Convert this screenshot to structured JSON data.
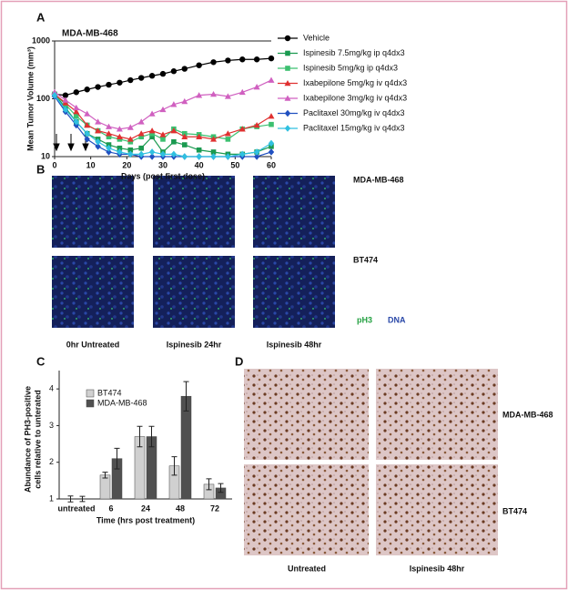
{
  "panel_labels": [
    "A",
    "B",
    "C",
    "D"
  ],
  "chart_data": [
    {
      "type": "line",
      "title": "MDA-MB-468",
      "xlabel": "Days (post first dose)",
      "ylabel": "Mean Tumor Volume (mm³)",
      "log_y": true,
      "xlim": [
        0,
        60
      ],
      "xticks": [
        0,
        10,
        20,
        30,
        40,
        50,
        60
      ],
      "ylim": [
        10,
        1000
      ],
      "yticks": [
        10,
        100,
        1000
      ],
      "x": [
        0,
        3,
        6,
        9,
        12,
        15,
        18,
        21,
        24,
        27,
        30,
        33,
        36,
        40,
        44,
        48,
        52,
        56,
        60
      ],
      "series": [
        {
          "name": "Vehicle",
          "color": "#000000",
          "marker": "circle",
          "values": [
            120,
            115,
            130,
            145,
            160,
            175,
            190,
            210,
            230,
            250,
            270,
            300,
            330,
            380,
            430,
            460,
            480,
            480,
            500
          ]
        },
        {
          "name": "Ispinesib 7.5mg/kg ip q4dx3",
          "color": "#1a9a50",
          "marker": "square",
          "values": [
            120,
            70,
            40,
            25,
            20,
            16,
            14,
            13,
            14,
            22,
            12,
            18,
            16,
            13,
            12,
            11,
            11,
            12,
            15
          ]
        },
        {
          "name": "Ispinesib 5mg/kg ip q4dx3",
          "color": "#3cc070",
          "marker": "square",
          "values": [
            120,
            80,
            50,
            35,
            28,
            22,
            20,
            18,
            22,
            25,
            20,
            30,
            25,
            24,
            22,
            20,
            30,
            33,
            36
          ]
        },
        {
          "name": "Ixabepilone 5mg/kg iv q4dx3",
          "color": "#e03030",
          "marker": "triangle",
          "values": [
            120,
            85,
            60,
            35,
            28,
            25,
            22,
            20,
            25,
            28,
            24,
            28,
            22,
            22,
            20,
            25,
            30,
            35,
            50
          ]
        },
        {
          "name": "Ixabepilone 3mg/kg iv q4dx3",
          "color": "#d060c0",
          "marker": "triangle",
          "values": [
            130,
            95,
            70,
            55,
            40,
            33,
            30,
            32,
            40,
            55,
            65,
            80,
            90,
            115,
            120,
            110,
            130,
            160,
            210
          ]
        },
        {
          "name": "Paclitaxel 30mg/kg iv q4dx3",
          "color": "#2050c0",
          "marker": "diamond",
          "values": [
            110,
            60,
            35,
            20,
            15,
            12,
            11,
            11,
            10,
            10,
            10,
            10,
            10,
            10,
            10,
            10,
            10,
            10,
            12
          ]
        },
        {
          "name": "Paclitaxel 15mg/kg iv q4dx3",
          "color": "#30c0e0",
          "marker": "diamond",
          "values": [
            115,
            65,
            40,
            25,
            18,
            14,
            12,
            11,
            11,
            12,
            11,
            11,
            10,
            10,
            10,
            10,
            11,
            12,
            17
          ]
        }
      ]
    },
    {
      "type": "bar",
      "xlabel": "Time (hrs post treatment)",
      "ylabel_lines": [
        "Abundance of PH3-positive",
        "cells relative to unterated"
      ],
      "ylim": [
        1,
        4.5
      ],
      "yticks": [
        1,
        2,
        3,
        4
      ],
      "categories": [
        "untreated",
        "6",
        "24",
        "48",
        "72"
      ],
      "series": [
        {
          "name": "BT474",
          "color": "#d0d0d0",
          "values": [
            1,
            1.65,
            2.7,
            1.9,
            1.4
          ],
          "errors": [
            0.08,
            0.08,
            0.28,
            0.25,
            0.15
          ]
        },
        {
          "name": "MDA-MB-468",
          "color": "#505050",
          "values": [
            1,
            2.1,
            2.7,
            3.8,
            1.3
          ],
          "errors": [
            0.07,
            0.28,
            0.28,
            0.4,
            0.12
          ]
        }
      ]
    }
  ],
  "panel_b": {
    "rows": [
      "MDA-MB-468",
      "BT474"
    ],
    "columns": [
      "0hr Untreated",
      "Ispinesib 24hr",
      "Ispinesib 48hr"
    ],
    "stain_1": "pH3",
    "stain_2": "DNA"
  },
  "panel_d": {
    "rows": [
      "MDA-MB-468",
      "BT474"
    ],
    "columns": [
      "Untreated",
      "Ispinesib 48hr"
    ]
  }
}
